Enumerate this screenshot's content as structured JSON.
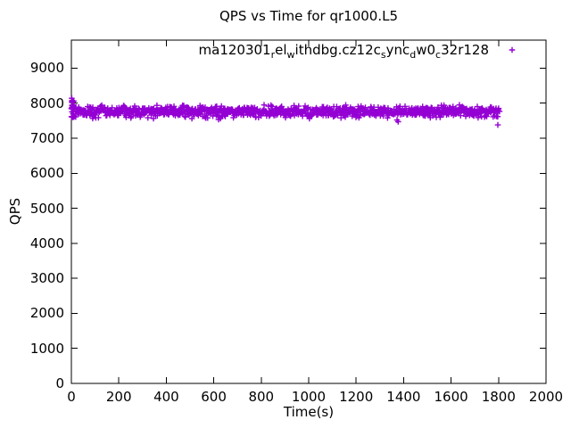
{
  "chart_data": {
    "type": "scatter",
    "title": "QPS vs Time for qr1000.L5",
    "xlabel": "Time(s)",
    "ylabel": "QPS",
    "xlim": [
      0,
      2000
    ],
    "ylim": [
      0,
      9800
    ],
    "xticks": [
      0,
      200,
      400,
      600,
      800,
      1000,
      1200,
      1400,
      1600,
      1800,
      2000
    ],
    "yticks": [
      0,
      1000,
      2000,
      3000,
      4000,
      5000,
      6000,
      7000,
      8000,
      9000
    ],
    "grid": false,
    "background_color": "#ffffff",
    "axis_color": "#000000",
    "legend_position": "top-right-inside",
    "series": [
      {
        "name": "ma120301_rel_withdbg.cz12c_sync_dw0_c32r128",
        "name_display_segments": [
          {
            "t": "ma120301"
          },
          {
            "sub": "r"
          },
          {
            "t": "el"
          },
          {
            "sub": "w"
          },
          {
            "t": "ithdbg.cz12c"
          },
          {
            "sub": "s"
          },
          {
            "t": "ync"
          },
          {
            "sub": "d"
          },
          {
            "t": "w0"
          },
          {
            "sub": "c"
          },
          {
            "t": "32r128"
          }
        ],
        "color": "#9400D3",
        "marker": "plus",
        "marker_size": 7,
        "pattern": {
          "description": "dense steady band of QPS samples",
          "t_start": 0,
          "t_end": 1805,
          "t_step": 1.8,
          "mean_qps": 7760,
          "sigma_qps": 75,
          "clamp": [
            7580,
            7950
          ],
          "dip_probability": 0.008,
          "startup_spike": {
            "t_range": [
              0,
              13
            ],
            "qps_range": [
              7585,
              8140
            ],
            "points": 24
          },
          "outliers": [
            [
              90,
              7565
            ],
            [
              508,
              7560
            ],
            [
              620,
              7535
            ],
            [
              628,
              7560
            ],
            [
              996,
              7675
            ],
            [
              1283,
              7640
            ],
            [
              1372,
              7520
            ],
            [
              1377,
              7470
            ],
            [
              1797,
              7380
            ]
          ],
          "seed": 42
        }
      }
    ]
  },
  "layout_text": {
    "note": "all visible strings live in chart_data"
  }
}
